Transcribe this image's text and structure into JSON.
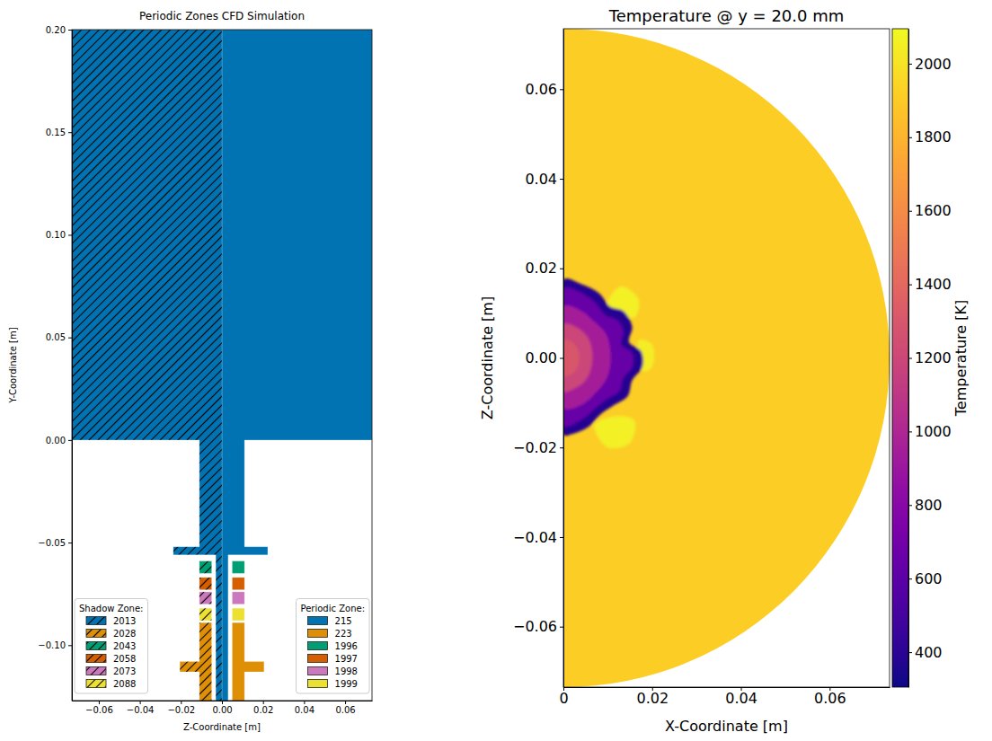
{
  "chart_data": [
    {
      "type": "mesh_zones",
      "title": "Periodic Zones CFD Simulation",
      "x_label": "Z-Coordinate [m]",
      "y_label": "Y-Coordinate [m]",
      "xlim": [
        -0.0731,
        0.0731
      ],
      "ylim": [
        -0.127,
        0.2
      ],
      "xticks": [
        {
          "value": -0.06,
          "label": "−0.06"
        },
        {
          "value": -0.04,
          "label": "−0.04"
        },
        {
          "value": -0.02,
          "label": "−0.02"
        },
        {
          "value": 0,
          "label": "0.00"
        },
        {
          "value": 0.02,
          "label": "0.02"
        },
        {
          "value": 0.04,
          "label": "0.04"
        },
        {
          "value": 0.06,
          "label": "0.06"
        }
      ],
      "yticks": [
        {
          "value": -0.1,
          "label": "−0.10"
        },
        {
          "value": -0.05,
          "label": "−0.05"
        },
        {
          "value": 0,
          "label": "0.00"
        },
        {
          "value": 0.05,
          "label": "0.05"
        },
        {
          "value": 0.1,
          "label": "0.10"
        },
        {
          "value": 0.15,
          "label": "0.15"
        },
        {
          "value": 0.2,
          "label": "0.20"
        }
      ],
      "groups": [
        {
          "title": "Shadow Zone:",
          "legend": "lower left",
          "line_style": "hatched",
          "series": [
            {
              "name": "2013",
              "color": "#0173b2",
              "polygon": [
                [
                  0,
                  0.2
                ],
                [
                  -0.0731,
                  0.2
                ],
                [
                  -0.0731,
                  0
                ],
                [
                  -0.011,
                  0
                ],
                [
                  -0.011,
                  -0.052
                ],
                [
                  -0.0237,
                  -0.052
                ],
                [
                  -0.0237,
                  -0.056
                ],
                [
                  -0.003,
                  -0.056
                ],
                [
                  -0.003,
                  -0.127
                ],
                [
                  0,
                  -0.127
                ]
              ]
            },
            {
              "name": "2028",
              "color": "#de8f05",
              "polygon": [
                [
                  -0.005,
                  -0.089
                ],
                [
                  -0.011,
                  -0.089
                ],
                [
                  -0.011,
                  -0.108
                ],
                [
                  -0.0205,
                  -0.108
                ],
                [
                  -0.0205,
                  -0.113
                ],
                [
                  -0.011,
                  -0.113
                ],
                [
                  -0.011,
                  -0.127
                ],
                [
                  -0.005,
                  -0.127
                ]
              ]
            },
            {
              "name": "2043",
              "color": "#029e73",
              "polygon": [
                [
                  -0.005,
                  -0.059
                ],
                [
                  -0.011,
                  -0.059
                ],
                [
                  -0.011,
                  -0.065
                ],
                [
                  -0.005,
                  -0.065
                ]
              ]
            },
            {
              "name": "2058",
              "color": "#d55e00",
              "polygon": [
                [
                  -0.005,
                  -0.067
                ],
                [
                  -0.011,
                  -0.067
                ],
                [
                  -0.011,
                  -0.073
                ],
                [
                  -0.005,
                  -0.073
                ]
              ]
            },
            {
              "name": "2073",
              "color": "#cc78bc",
              "polygon": [
                [
                  -0.005,
                  -0.074
                ],
                [
                  -0.011,
                  -0.074
                ],
                [
                  -0.011,
                  -0.08
                ],
                [
                  -0.005,
                  -0.08
                ]
              ]
            },
            {
              "name": "2088",
              "color": "#ece133",
              "polygon": [
                [
                  -0.005,
                  -0.082
                ],
                [
                  -0.011,
                  -0.082
                ],
                [
                  -0.011,
                  -0.088
                ],
                [
                  -0.005,
                  -0.088
                ]
              ]
            }
          ]
        },
        {
          "title": "Periodic Zone:",
          "legend": "lower right",
          "line_style": "solid",
          "series": [
            {
              "name": "215",
              "color": "#0173b2",
              "polygon": [
                [
                  0,
                  0.2
                ],
                [
                  0.0731,
                  0.2
                ],
                [
                  0.0731,
                  0
                ],
                [
                  0.011,
                  0
                ],
                [
                  0.011,
                  -0.052
                ],
                [
                  0.0223,
                  -0.052
                ],
                [
                  0.0223,
                  -0.056
                ],
                [
                  0.003,
                  -0.056
                ],
                [
                  0.003,
                  -0.127
                ],
                [
                  0,
                  -0.127
                ]
              ]
            },
            {
              "name": "223",
              "color": "#de8f05",
              "polygon": [
                [
                  0.005,
                  -0.089
                ],
                [
                  0.011,
                  -0.089
                ],
                [
                  0.011,
                  -0.108
                ],
                [
                  0.0205,
                  -0.108
                ],
                [
                  0.0205,
                  -0.113
                ],
                [
                  0.011,
                  -0.113
                ],
                [
                  0.011,
                  -0.127
                ],
                [
                  0.005,
                  -0.127
                ]
              ]
            },
            {
              "name": "1996",
              "color": "#029e73",
              "polygon": [
                [
                  0.005,
                  -0.059
                ],
                [
                  0.011,
                  -0.059
                ],
                [
                  0.011,
                  -0.065
                ],
                [
                  0.005,
                  -0.065
                ]
              ]
            },
            {
              "name": "1997",
              "color": "#d55e00",
              "polygon": [
                [
                  0.005,
                  -0.067
                ],
                [
                  0.011,
                  -0.067
                ],
                [
                  0.011,
                  -0.073
                ],
                [
                  0.005,
                  -0.073
                ]
              ]
            },
            {
              "name": "1998",
              "color": "#cc78bc",
              "polygon": [
                [
                  0.005,
                  -0.074
                ],
                [
                  0.011,
                  -0.074
                ],
                [
                  0.011,
                  -0.08
                ],
                [
                  0.005,
                  -0.08
                ]
              ]
            },
            {
              "name": "1999",
              "color": "#ece133",
              "polygon": [
                [
                  0.005,
                  -0.082
                ],
                [
                  0.011,
                  -0.082
                ],
                [
                  0.011,
                  -0.088
                ],
                [
                  0.005,
                  -0.088
                ]
              ]
            }
          ]
        }
      ]
    },
    {
      "type": "contour",
      "title": "Temperature @ y = 20.0 mm",
      "x_label": "X-Coordinate [m]",
      "y_label": "Z-Coordinate [m]",
      "xlim": [
        0,
        0.0735
      ],
      "ylim": [
        -0.0735,
        0.0735
      ],
      "xticks": [
        0,
        0.02,
        0.04,
        0.06
      ],
      "yticks": [
        {
          "value": -0.06,
          "label": "−0.06"
        },
        {
          "value": -0.04,
          "label": "−0.04"
        },
        {
          "value": -0.02,
          "label": "−0.02"
        },
        {
          "value": 0,
          "label": "0.00"
        },
        {
          "value": 0.02,
          "label": "0.02"
        },
        {
          "value": 0.04,
          "label": "0.04"
        },
        {
          "value": 0.06,
          "label": "0.06"
        }
      ],
      "color": "plasma",
      "field": {
        "radius": 0.0735,
        "background": 1910,
        "regions": [
          {
            "temperature": 2060,
            "polygon": [
              [
                0.01,
                0.012
              ],
              [
                0.013,
                0.016
              ],
              [
                0.017,
                0.013
              ],
              [
                0.016,
                0.009
              ],
              [
                0.013,
                0.01
              ]
            ]
          },
          {
            "temperature": 2060,
            "polygon": [
              [
                0.007,
                -0.015
              ],
              [
                0.01,
                -0.02
              ],
              [
                0.015,
                -0.019
              ],
              [
                0.016,
                -0.014
              ],
              [
                0.012,
                -0.013
              ]
            ]
          },
          {
            "temperature": 2040,
            "polygon": [
              [
                0.017,
                0.004
              ],
              [
                0.02,
                0.003
              ],
              [
                0.02,
                -0.002
              ],
              [
                0.018,
                -0.003
              ]
            ]
          },
          {
            "temperature": 380,
            "polygon": [
              [
                0,
                0.0175
              ],
              [
                0.004,
                0.0165
              ],
              [
                0.008,
                0.0145
              ],
              [
                0.0105,
                0.0115
              ],
              [
                0.0135,
                0.0105
              ],
              [
                0.0155,
                0.007
              ],
              [
                0.0148,
                0.0035
              ],
              [
                0.0175,
                0.0015
              ],
              [
                0.0178,
                -0.002
              ],
              [
                0.0155,
                -0.005
              ],
              [
                0.0145,
                -0.0085
              ],
              [
                0.0115,
                -0.0105
              ],
              [
                0.0085,
                -0.0125
              ],
              [
                0.0055,
                -0.0155
              ],
              [
                0.002,
                -0.017
              ],
              [
                0,
                -0.0172
              ]
            ]
          },
          {
            "temperature": 650,
            "polygon": [
              [
                0,
                0.0155
              ],
              [
                0.004,
                0.0145
              ],
              [
                0.007,
                0.0125
              ],
              [
                0.0095,
                0.0095
              ],
              [
                0.012,
                0.0085
              ],
              [
                0.0135,
                0.006
              ],
              [
                0.013,
                0.003
              ],
              [
                0.0155,
                0.001
              ],
              [
                0.0155,
                -0.002
              ],
              [
                0.0135,
                -0.0045
              ],
              [
                0.0125,
                -0.0075
              ],
              [
                0.01,
                -0.009
              ],
              [
                0.0075,
                -0.011
              ],
              [
                0.0045,
                -0.0135
              ],
              [
                0,
                -0.0152
              ]
            ]
          },
          {
            "temperature": 950,
            "polygon": [
              [
                0,
                0.0115
              ],
              [
                0.004,
                0.0105
              ],
              [
                0.007,
                0.008
              ],
              [
                0.0095,
                0.0055
              ],
              [
                0.0105,
                0.002
              ],
              [
                0.0105,
                -0.002
              ],
              [
                0.0095,
                -0.005
              ],
              [
                0.007,
                -0.008
              ],
              [
                0.004,
                -0.0105
              ],
              [
                0,
                -0.0112
              ]
            ]
          },
          {
            "temperature": 1200,
            "polygon": [
              [
                0,
                0.0075
              ],
              [
                0.003,
                0.0068
              ],
              [
                0.0055,
                0.0045
              ],
              [
                0.0065,
                0.001
              ],
              [
                0.006,
                -0.003
              ],
              [
                0.0045,
                -0.0055
              ],
              [
                0.002,
                -0.007
              ],
              [
                0,
                -0.0075
              ]
            ]
          },
          {
            "temperature": 1300,
            "polygon": [
              [
                0,
                0.004
              ],
              [
                0.002,
                0.0035
              ],
              [
                0.0035,
                0.001
              ],
              [
                0.0032,
                -0.002
              ],
              [
                0.002,
                -0.0035
              ],
              [
                0,
                -0.004
              ]
            ]
          }
        ]
      },
      "colorbar": {
        "label": "Temperature [K]",
        "range": [
          305,
          2095
        ],
        "ticks": [
          400,
          600,
          800,
          1000,
          1200,
          1400,
          1600,
          1800,
          2000
        ]
      }
    }
  ]
}
